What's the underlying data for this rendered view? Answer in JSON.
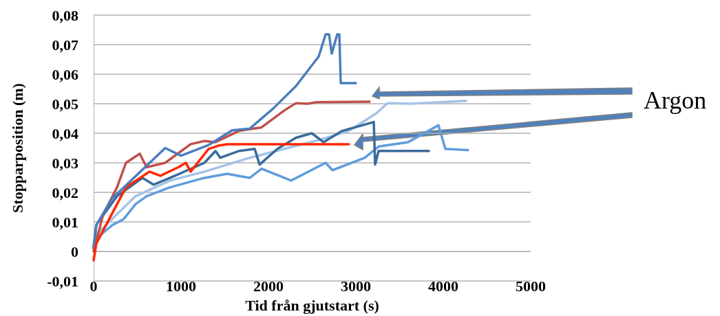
{
  "chart_data": {
    "type": "line",
    "xlabel": "Tid från gjutstart (s)",
    "ylabel": "Stopparposition (m)",
    "annotations": [
      "Argon"
    ],
    "xlim": [
      0,
      5000
    ],
    "xticks": [
      0,
      1000,
      2000,
      3000,
      4000,
      5000
    ],
    "ylim": [
      -0.01,
      0.08
    ],
    "yticks": [
      {
        "value": -0.01,
        "label": "-0,01"
      },
      0,
      {
        "value": 0.01,
        "label": "0,01"
      },
      {
        "value": 0.02,
        "label": "0,02"
      },
      {
        "value": 0.03,
        "label": "0,03"
      },
      {
        "value": 0.04,
        "label": "0,04"
      },
      {
        "value": 0.05,
        "label": "0,05"
      },
      {
        "value": 0.06,
        "label": "0,06"
      },
      {
        "value": 0.07,
        "label": "0,07"
      },
      {
        "value": 0.08,
        "label": "0,08"
      }
    ],
    "grid": "y",
    "line_style": "solid",
    "series": [
      {
        "color": "#5f9ddc",
        "x": [
          0,
          31,
          213,
          346,
          480,
          606,
          874,
          1268,
          1528,
          1787,
          1921,
          2260,
          2654,
          2732,
          3102,
          3260,
          3598,
          3945,
          4024,
          4283
        ],
        "values": [
          0.001,
          0.0044,
          0.0089,
          0.011,
          0.016,
          0.0187,
          0.0217,
          0.0249,
          0.0263,
          0.0249,
          0.028,
          0.024,
          0.03,
          0.0275,
          0.0317,
          0.0355,
          0.037,
          0.0427,
          0.0347,
          0.0343
        ]
      },
      {
        "color": "#a4c2e6",
        "x": [
          0,
          31,
          268,
          480,
          874,
          1268,
          1787,
          2181,
          2575,
          2920,
          3236,
          3362,
          3630,
          4260
        ],
        "values": [
          0.001,
          0.0057,
          0.0126,
          0.0187,
          0.024,
          0.027,
          0.0317,
          0.0347,
          0.0377,
          0.0408,
          0.0468,
          0.0502,
          0.05,
          0.051
        ]
      },
      {
        "color": "#3a6a9a",
        "x": [
          0,
          31,
          268,
          559,
          685,
          874,
          1268,
          1394,
          1449,
          1661,
          1843,
          1898,
          2102,
          2315,
          2496,
          2630,
          2843,
          3205,
          3220,
          3260,
          3835
        ],
        "values": [
          0.001,
          0.009,
          0.0187,
          0.0249,
          0.0226,
          0.0249,
          0.03,
          0.034,
          0.0317,
          0.034,
          0.0347,
          0.0294,
          0.0347,
          0.0385,
          0.04,
          0.037,
          0.0408,
          0.0438,
          0.0294,
          0.034,
          0.034
        ]
      },
      {
        "color": "#c0504d",
        "x": [
          0,
          110,
          268,
          370,
          528,
          606,
          819,
          1110,
          1268,
          1394,
          1661,
          1921,
          2181,
          2315,
          2449,
          2551,
          3157
        ],
        "values": [
          0,
          0.0126,
          0.0217,
          0.03,
          0.0331,
          0.0285,
          0.03,
          0.0363,
          0.0374,
          0.037,
          0.0408,
          0.042,
          0.0477,
          0.0502,
          0.05,
          0.0505,
          0.0507
        ]
      },
      {
        "color": "#ff2600",
        "x": [
          0,
          31,
          370,
          638,
          764,
          976,
          1055,
          1110,
          1315,
          1425,
          1528,
          2920
        ],
        "values": [
          -0.003,
          0.0027,
          0.0217,
          0.027,
          0.0256,
          0.0286,
          0.03,
          0.027,
          0.0347,
          0.0358,
          0.0363,
          0.0363
        ]
      },
      {
        "color": "#4a7ebb",
        "x": [
          0,
          31,
          213,
          346,
          819,
          1000,
          1315,
          1583,
          1787,
          2055,
          2315,
          2575,
          2654,
          2693,
          2724,
          2787,
          2811,
          2827,
          3000
        ],
        "values": [
          0.002,
          0.0089,
          0.018,
          0.0217,
          0.035,
          0.0324,
          0.036,
          0.041,
          0.0416,
          0.0484,
          0.056,
          0.066,
          0.0735,
          0.0735,
          0.067,
          0.0735,
          0.0735,
          0.057,
          0.057
        ]
      }
    ]
  }
}
